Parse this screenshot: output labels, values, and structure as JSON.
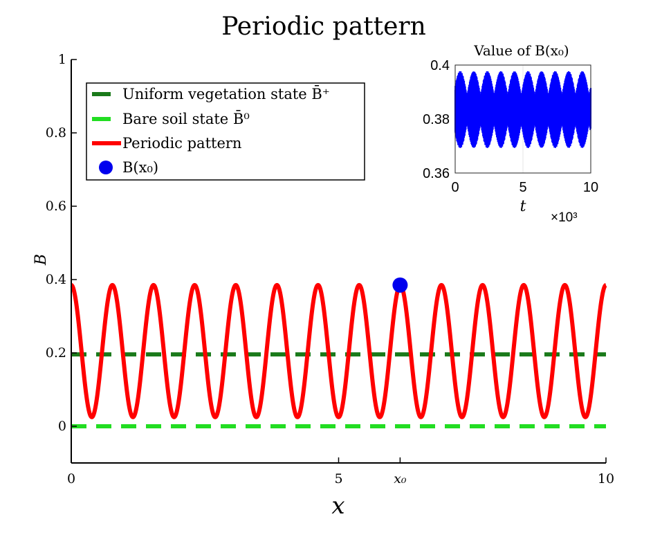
{
  "chart_data": [
    {
      "type": "line",
      "title": "Periodic pattern",
      "xlabel": "x",
      "ylabel": "B",
      "xlim": [
        0,
        10
      ],
      "ylim": [
        -0.1,
        1
      ],
      "xticks": [
        {
          "value": 0,
          "label": "0"
        },
        {
          "value": 5,
          "label": "5"
        },
        {
          "value": 6.15,
          "label": "x₀"
        },
        {
          "value": 10,
          "label": "10"
        }
      ],
      "yticks": [
        {
          "value": 0,
          "label": "0"
        },
        {
          "value": 0.2,
          "label": "0.2"
        },
        {
          "value": 0.4,
          "label": "0.4"
        },
        {
          "value": 0.6,
          "label": "0.6"
        },
        {
          "value": 0.8,
          "label": "0.8"
        },
        {
          "value": 1,
          "label": "1"
        }
      ],
      "grid": false,
      "legend_position": "top-left",
      "series": [
        {
          "name": "Uniform vegetation state B̄⁺",
          "style": "dashed",
          "color": "#1a7a1a",
          "y_constant": 0.196
        },
        {
          "name": "Bare soil state B̄⁰",
          "style": "dashed",
          "color": "#22dd22",
          "y_constant": 0.0
        },
        {
          "name": "Periodic pattern",
          "style": "solid",
          "color": "#ff0000",
          "function": "sinusoid",
          "max": 0.385,
          "min": 0.025,
          "periods": 13,
          "peak_at_x": 0
        },
        {
          "name": "B(x₀)",
          "style": "marker",
          "color": "#0000ee",
          "x": 6.15,
          "y": 0.385
        }
      ]
    },
    {
      "type": "line",
      "title": "Value of B(x₀)",
      "xlabel": "t",
      "x_multiplier_label": "×10³",
      "xlim": [
        0,
        10
      ],
      "ylim": [
        0.36,
        0.4
      ],
      "xticks": [
        {
          "value": 0,
          "label": "0"
        },
        {
          "value": 5,
          "label": "5"
        },
        {
          "value": 10,
          "label": "10"
        }
      ],
      "yticks": [
        {
          "value": 0.36,
          "label": "0.36"
        },
        {
          "value": 0.38,
          "label": "0.38"
        },
        {
          "value": 0.4,
          "label": "0.4"
        }
      ],
      "grid": true,
      "series": [
        {
          "color": "#0000ff",
          "center": 0.3835,
          "envelope_min": 0.3695,
          "envelope_max": 0.398,
          "beat_periods": 10
        }
      ]
    }
  ]
}
